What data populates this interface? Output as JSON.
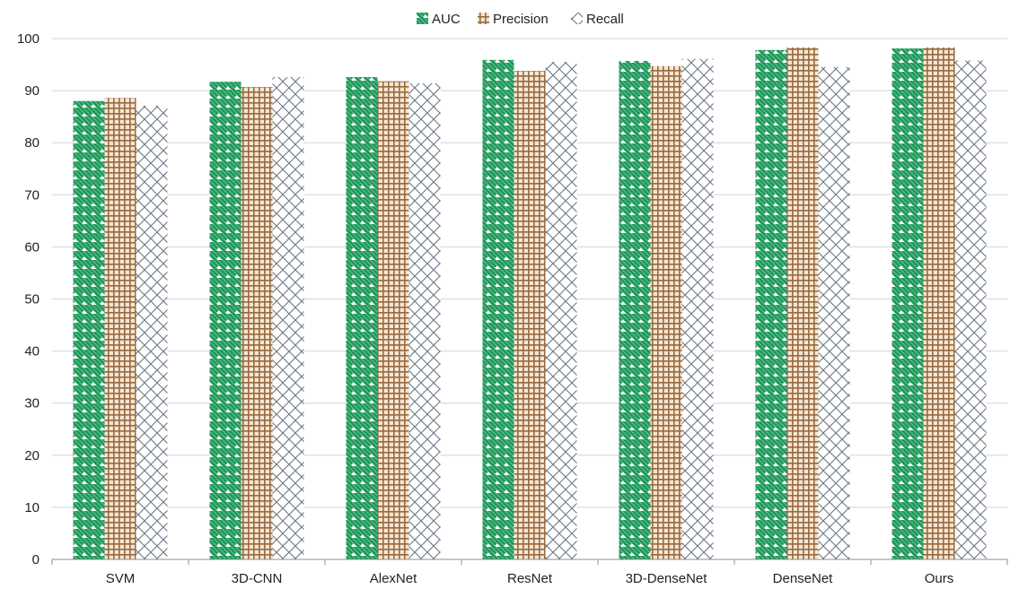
{
  "chart_data": {
    "type": "bar",
    "title": "",
    "xlabel": "",
    "ylabel": "",
    "categories": [
      "SVM",
      "3D-CNN",
      "AlexNet",
      "ResNet",
      "3D-DenseNet",
      "DenseNet",
      "Ours"
    ],
    "series": [
      {
        "name": "AUC",
        "color": "#1e9a5a",
        "pattern": "diagonal-stripes",
        "values": [
          88.0,
          91.7,
          92.6,
          95.9,
          95.7,
          97.8,
          98.1
        ]
      },
      {
        "name": "Precision",
        "color": "#9a6a3c",
        "pattern": "grid",
        "values": [
          88.6,
          90.7,
          91.8,
          93.8,
          94.7,
          98.3,
          98.3
        ]
      },
      {
        "name": "Recall",
        "color": "#6b7785",
        "pattern": "crosshatch-diamonds",
        "values": [
          87.1,
          92.6,
          91.4,
          95.5,
          96.1,
          94.5,
          95.8
        ]
      }
    ],
    "ylim": [
      0,
      100
    ],
    "yticks": [
      0,
      10,
      20,
      30,
      40,
      50,
      60,
      70,
      80,
      90,
      100
    ],
    "grid": true,
    "legend_position": "top-center"
  }
}
